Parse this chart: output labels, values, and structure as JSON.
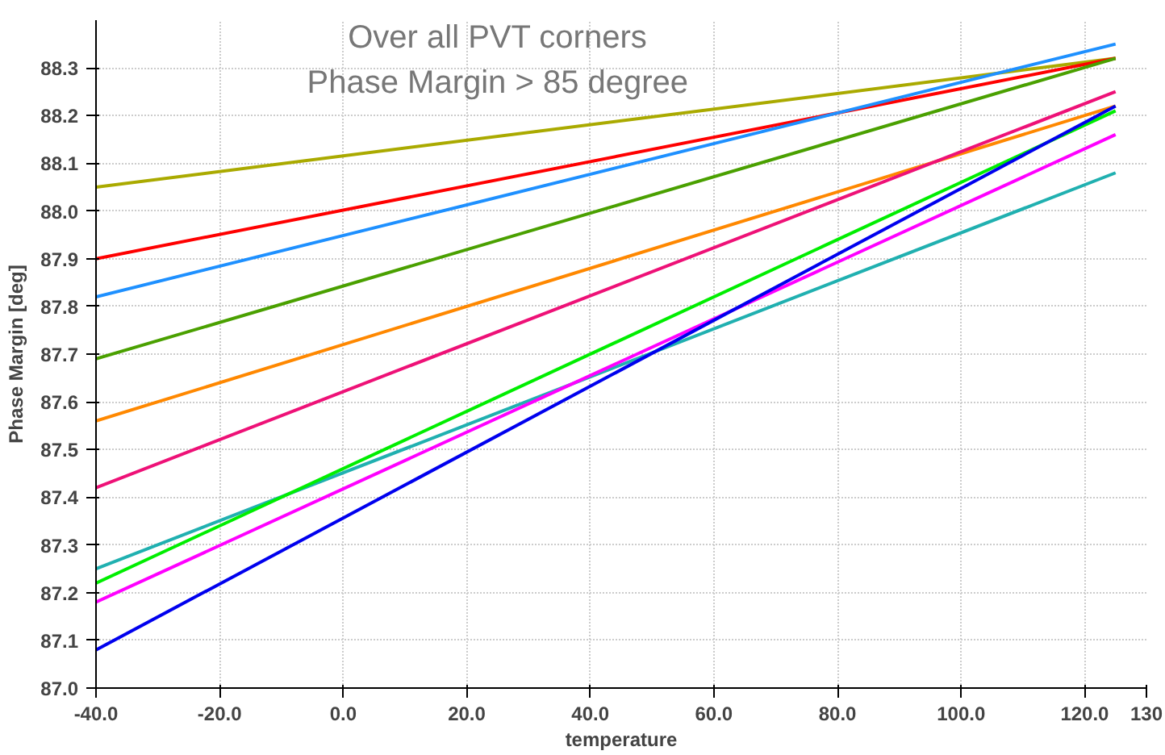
{
  "chart_data": {
    "type": "line",
    "title": "Over all PVT corners",
    "subtitle": "Phase Margin > 85 degree",
    "xlabel": "temperature",
    "ylabel": "Phase Margin [deg]",
    "x": [
      -40,
      125
    ],
    "series": [
      {
        "color": "#aaaa00",
        "values": [
          88.05,
          88.32
        ]
      },
      {
        "color": "#ff0000",
        "values": [
          87.9,
          88.32
        ]
      },
      {
        "color": "#1e90ff",
        "values": [
          87.82,
          88.35
        ]
      },
      {
        "color": "#4aa000",
        "values": [
          87.69,
          88.32
        ]
      },
      {
        "color": "#ff8800",
        "values": [
          87.56,
          88.22
        ]
      },
      {
        "color": "#ee1177",
        "values": [
          87.42,
          88.25
        ]
      },
      {
        "color": "#20b0b0",
        "values": [
          87.25,
          88.08
        ]
      },
      {
        "color": "#00ee00",
        "values": [
          87.22,
          88.21
        ]
      },
      {
        "color": "#ff00ff",
        "values": [
          87.18,
          88.16
        ]
      },
      {
        "color": "#0000ee",
        "values": [
          87.08,
          88.22
        ]
      }
    ],
    "xlim": [
      -40,
      130
    ],
    "xticks": [
      {
        "value": -40,
        "label": "-40.0"
      },
      {
        "value": -20,
        "label": "-20.0"
      },
      {
        "value": 0,
        "label": "0.0"
      },
      {
        "value": 20,
        "label": "20.0"
      },
      {
        "value": 40,
        "label": "40.0"
      },
      {
        "value": 60,
        "label": "60.0"
      },
      {
        "value": 80,
        "label": "80.0"
      },
      {
        "value": 100,
        "label": "100.0"
      },
      {
        "value": 120,
        "label": "120.0"
      },
      130
    ],
    "ylim": [
      87.0,
      88.4
    ],
    "yticks": [
      {
        "value": 87.0,
        "label": "87.0"
      },
      87.1,
      87.2,
      87.3,
      87.4,
      87.5,
      87.6,
      87.7,
      87.8,
      87.9,
      {
        "value": 88.0,
        "label": "88.0"
      },
      88.1,
      88.2,
      88.3
    ],
    "grid": true,
    "marker": "none",
    "line_style": "solid"
  }
}
